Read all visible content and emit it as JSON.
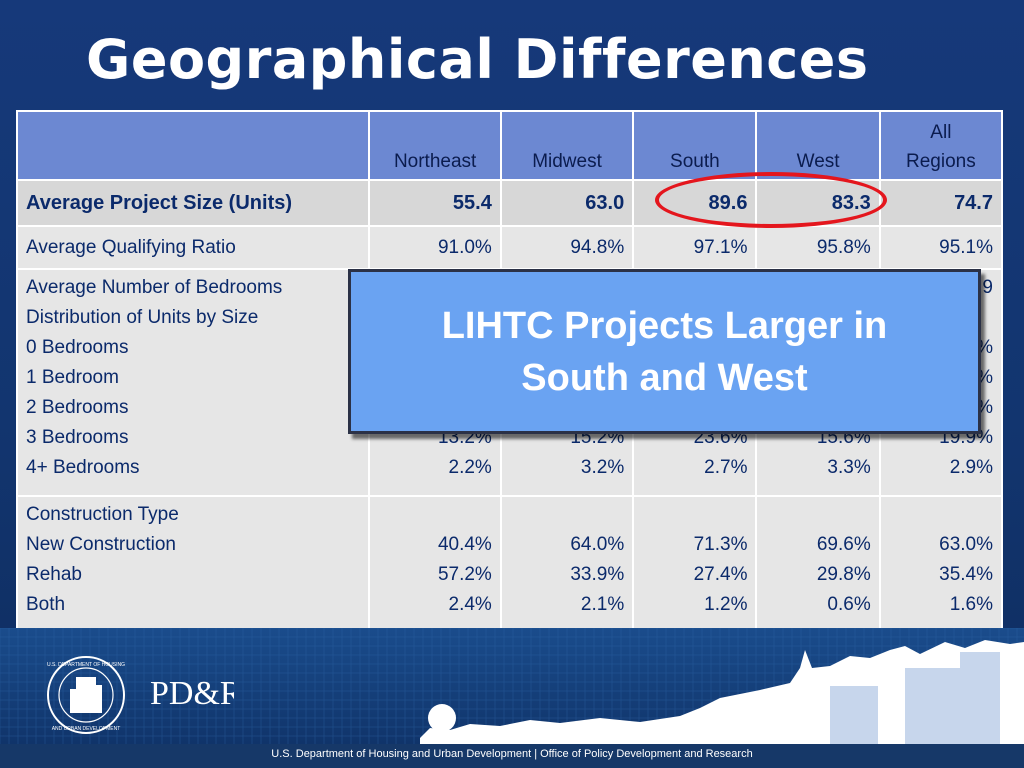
{
  "slide": {
    "title": "Geographical Differences",
    "footer_text": "U.S. Department of Housing and Urban Development  |  Office of Policy Development and Research",
    "logos": {
      "hud_seal": "U.S. DEPARTMENT OF HOUSING AND URBAN DEVELOPMENT",
      "pdr": "PD&R"
    },
    "colors": {
      "background": "#12346b",
      "header_row": "#6c88d2",
      "table_body": "#e6e6e6",
      "callout": "#6aa3f2",
      "highlight": "#e4161d"
    }
  },
  "table": {
    "headers": [
      "",
      "Northeast",
      "Midwest",
      "South",
      "West",
      "All Regions"
    ],
    "rows": {
      "project_size": {
        "label": "Average Project Size (Units)",
        "values": [
          "55.4",
          "63.0",
          "89.6",
          "83.3",
          "74.7"
        ]
      },
      "qualifying_ratio": {
        "label": "Average Qualifying Ratio",
        "values": [
          "91.0%",
          "94.8%",
          "97.1%",
          "95.8%",
          "95.1%"
        ]
      },
      "bedrooms": {
        "labels": [
          "Average Number of Bedrooms",
          "Distribution of Units by Size",
          "0 Bedrooms",
          "1 Bedroom",
          "2 Bedrooms",
          "3 Bedrooms",
          "4+ Bedrooms"
        ],
        "northeast": [
          "",
          "",
          "",
          "",
          "",
          "13.2%",
          "2.2%"
        ],
        "midwest": [
          "",
          "",
          "",
          "",
          "",
          "15.2%",
          "3.2%"
        ],
        "south": [
          "",
          "",
          "",
          "",
          "",
          "23.6%",
          "2.7%"
        ],
        "west": [
          "",
          "",
          "",
          "",
          "",
          "15.6%",
          "3.3%"
        ],
        "all": [
          "9",
          "",
          "%",
          "%",
          "%",
          "19.9%",
          "2.9%"
        ]
      },
      "construction": {
        "labels": [
          "Construction Type",
          "New Construction",
          "Rehab",
          "Both"
        ],
        "northeast": [
          "",
          "40.4%",
          "57.2%",
          "2.4%"
        ],
        "midwest": [
          "",
          "64.0%",
          "33.9%",
          "2.1%"
        ],
        "south": [
          "",
          "71.3%",
          "27.4%",
          "1.2%"
        ],
        "west": [
          "",
          "69.6%",
          "29.8%",
          "0.6%"
        ],
        "all": [
          "",
          "63.0%",
          "35.4%",
          "1.6%"
        ]
      }
    }
  },
  "callout": {
    "text": "LIHTC Projects Larger in South and West"
  }
}
